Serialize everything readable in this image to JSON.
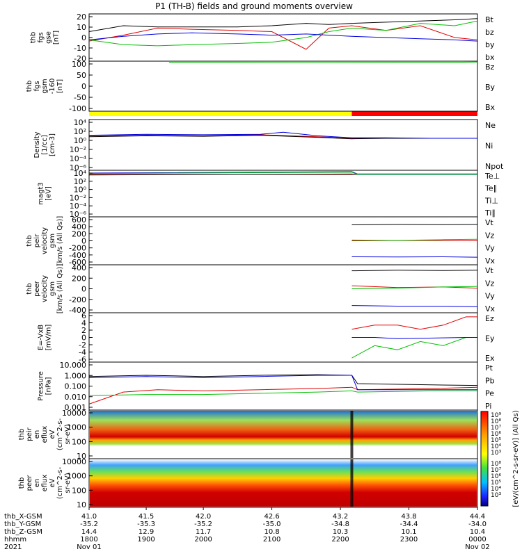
{
  "title": "P1 (TH-B) fields and ground moments overview",
  "chart_data": [
    {
      "type": "line",
      "ylabel": [
        "thb",
        "fgs",
        "gse",
        "[nT]"
      ],
      "yticks": [
        "20",
        "10",
        "0",
        "-10",
        "-20"
      ],
      "ylim": [
        -20,
        20
      ],
      "series": [
        {
          "name": "Bt",
          "color": "#000000",
          "x": [
            41.0,
            41.3,
            41.6,
            41.9,
            42.3,
            42.6,
            42.9,
            43.1,
            43.3,
            43.6,
            43.9,
            44.2,
            44.4
          ],
          "y": [
            5,
            10,
            9,
            9,
            9,
            10,
            12,
            11,
            12,
            13,
            14,
            15,
            16
          ]
        },
        {
          "name": "bz",
          "color": "#e00000",
          "x": [
            41.0,
            41.3,
            41.6,
            41.9,
            42.3,
            42.6,
            42.9,
            43.1,
            43.3,
            43.6,
            43.9,
            44.2,
            44.4
          ],
          "y": [
            -3,
            2,
            8,
            7,
            6,
            5,
            -10,
            8,
            10,
            6,
            10,
            0,
            -2
          ]
        },
        {
          "name": "by",
          "color": "#00c000",
          "x": [
            41.0,
            41.3,
            41.6,
            41.9,
            42.3,
            42.6,
            42.9,
            43.1,
            43.3,
            43.6,
            43.9,
            44.2,
            44.4
          ],
          "y": [
            -2,
            -6,
            -7,
            -6,
            -5,
            -4,
            0,
            5,
            8,
            6,
            12,
            10,
            14
          ]
        },
        {
          "name": "bx",
          "color": "#0000e0",
          "x": [
            41.0,
            41.3,
            41.6,
            41.9,
            42.3,
            42.6,
            42.9,
            43.1,
            43.3,
            43.6,
            43.9,
            44.2,
            44.4
          ],
          "y": [
            -2,
            1,
            3,
            4,
            3,
            2,
            3,
            2,
            1,
            0,
            -1,
            -2,
            -3
          ]
        }
      ]
    },
    {
      "type": "line",
      "ylabel": [
        "thb",
        "fgs",
        "gsm",
        "-160",
        "[nT]"
      ],
      "yticks": [
        "100",
        "50",
        "0",
        "-50",
        "-100"
      ],
      "ylim": [
        -120,
        100
      ],
      "series": [
        {
          "name": "Bz",
          "color": "#e00000",
          "x": [],
          "y": []
        },
        {
          "name": "By",
          "color": "#00c000",
          "x": [
            41.7,
            42.2,
            42.7,
            43.2,
            43.7,
            44.2,
            44.4
          ],
          "y": [
            95,
            95,
            94,
            94,
            95,
            95,
            96
          ]
        },
        {
          "name": "Bx",
          "color": "#0000e0",
          "x": [],
          "y": []
        }
      ]
    },
    {
      "type": "line",
      "ylabel": [
        "Density",
        "[1/cc]",
        "[cm-3]"
      ],
      "yticks": [
        "10⁴",
        "10²",
        "10⁰",
        "10⁻²",
        "10⁻⁴",
        "10⁻⁶"
      ],
      "ylim": [
        -6,
        4
      ],
      "yscale": "log",
      "series": [
        {
          "name": "Ne",
          "color": "#e00000",
          "x": [
            41.0,
            41.5,
            42.0,
            42.5,
            43.0,
            43.3,
            43.6,
            44.0,
            44.4
          ],
          "y": [
            0.8,
            0.9,
            0.8,
            1.0,
            0.6,
            0.3,
            0.3,
            0.3,
            0.3
          ]
        },
        {
          "name": "Ni",
          "color": "#000000",
          "x": [
            41.0,
            41.5,
            42.0,
            42.5,
            43.0,
            43.3,
            43.6,
            44.0,
            44.4
          ],
          "y": [
            0.6,
            0.8,
            0.7,
            0.9,
            0.5,
            0.2,
            0.3,
            0.3,
            0.3
          ]
        },
        {
          "name": "Npot",
          "color": "#0000e0",
          "x": [
            41.0,
            41.5,
            42.0,
            42.5,
            42.7,
            43.0,
            43.3,
            43.6,
            44.0,
            44.4
          ],
          "y": [
            0.9,
            1.1,
            1.0,
            1.1,
            1.5,
            0.8,
            0.4,
            0.4,
            0.3,
            0.3
          ]
        }
      ]
    },
    {
      "type": "line",
      "ylabel": [
        "magt3",
        "[eV]"
      ],
      "yticks": [
        "10⁴",
        "10²",
        "10⁰",
        "10⁻²",
        "10⁻⁴",
        "10⁻⁶"
      ],
      "ylim": [
        -6,
        4
      ],
      "yscale": "log",
      "series": [
        {
          "name": "Te⊥",
          "color": "#e00000",
          "x": [
            41.0,
            43.3,
            43.35,
            44.4
          ],
          "y": [
            3.1,
            3.1,
            3.2,
            3.2
          ]
        },
        {
          "name": "Te∥",
          "color": "#000000",
          "x": [
            41.0,
            43.3,
            43.35,
            44.4
          ],
          "y": [
            3.0,
            3.2,
            3.1,
            3.1
          ]
        },
        {
          "name": "Ti⊥",
          "color": "#0000e0",
          "x": [
            41.0,
            43.3,
            43.35,
            44.4
          ],
          "y": [
            3.4,
            3.7,
            3.2,
            3.2
          ]
        },
        {
          "name": "Ti∥",
          "color": "#00c000",
          "x": [
            41.0,
            43.3,
            43.35,
            44.4
          ],
          "y": [
            3.3,
            3.6,
            3.1,
            3.1
          ]
        }
      ]
    },
    {
      "type": "line",
      "ylabel": [
        "thb",
        "peir",
        "velocity",
        "gsm",
        "[km/s (All Qs)]"
      ],
      "yticks": [
        "600",
        "400",
        "200",
        "0",
        "-200",
        "-400",
        "-600"
      ],
      "ylim": [
        -600,
        600
      ],
      "series": [
        {
          "name": "Vt",
          "color": "#000000",
          "x": [
            43.3,
            43.7,
            44.1,
            44.4
          ],
          "y": [
            400,
            410,
            405,
            410
          ]
        },
        {
          "name": "Vz",
          "color": "#e00000",
          "x": [
            43.3,
            43.7,
            44.1,
            44.4
          ],
          "y": [
            0,
            10,
            5,
            0
          ]
        },
        {
          "name": "Vy",
          "color": "#00c000",
          "x": [
            43.3,
            43.7,
            44.1,
            44.4
          ],
          "y": [
            20,
            10,
            30,
            40
          ]
        },
        {
          "name": "Vx",
          "color": "#0000e0",
          "x": [
            43.3,
            43.7,
            44.1,
            44.4
          ],
          "y": [
            -400,
            -405,
            -400,
            -410
          ]
        }
      ]
    },
    {
      "type": "line",
      "ylabel": [
        "thb",
        "peer",
        "velocity",
        "gsm",
        "[km/s (All Qs)]"
      ],
      "yticks": [
        "400",
        "200",
        "0",
        "-200",
        "-400"
      ],
      "ylim": [
        -400,
        400
      ],
      "series": [
        {
          "name": "Vt",
          "color": "#000000",
          "x": [
            43.3,
            43.7,
            44.1,
            44.4
          ],
          "y": [
            300,
            310,
            305,
            310
          ]
        },
        {
          "name": "Vz",
          "color": "#e00000",
          "x": [
            43.3,
            43.7,
            44.1,
            44.4
          ],
          "y": [
            50,
            20,
            30,
            10
          ]
        },
        {
          "name": "Vy",
          "color": "#00c000",
          "x": [
            43.3,
            43.7,
            44.1,
            44.4
          ],
          "y": [
            0,
            10,
            30,
            40
          ]
        },
        {
          "name": "Vx",
          "color": "#0000e0",
          "x": [
            43.3,
            43.7,
            44.1,
            44.4
          ],
          "y": [
            -280,
            -290,
            -290,
            -300
          ]
        }
      ]
    },
    {
      "type": "line",
      "ylabel": [
        "E=-VxB",
        "[mV/m]"
      ],
      "yticks": [
        "6",
        "4",
        "2",
        "0",
        "-2",
        "-4",
        "-6"
      ],
      "ylim": [
        -6,
        6
      ],
      "series": [
        {
          "name": "Ez",
          "color": "#e00000",
          "x": [
            43.3,
            43.5,
            43.7,
            43.9,
            44.1,
            44.3,
            44.4
          ],
          "y": [
            2,
            3,
            3,
            2,
            3,
            5,
            5
          ]
        },
        {
          "name": "Ey",
          "color": "#00c000",
          "x": [
            43.3,
            43.5,
            43.7,
            43.9,
            44.1,
            44.3,
            44.4
          ],
          "y": [
            -5,
            -2,
            -3,
            -1,
            -2,
            0,
            0
          ]
        },
        {
          "name": "Ex",
          "color": "#0000e0",
          "x": [
            43.3,
            43.5,
            43.7,
            43.9,
            44.1,
            44.3,
            44.4
          ],
          "y": [
            0,
            0,
            -0.3,
            -0.2,
            -0.1,
            0,
            0
          ]
        }
      ]
    },
    {
      "type": "line",
      "ylabel": [
        "Pressure",
        "[nPa]"
      ],
      "yticks": [
        "10.000",
        "1.000",
        "0.100",
        "0.010",
        "0.001"
      ],
      "ylim": [
        -3,
        1
      ],
      "yscale": "log",
      "series": [
        {
          "name": "Pt",
          "color": "#000000",
          "x": [
            41.0,
            41.5,
            42.0,
            42.5,
            43.0,
            43.3,
            43.35,
            44.0,
            44.4
          ],
          "y": [
            -0.2,
            -0.1,
            -0.2,
            -0.1,
            -0.05,
            -0.1,
            -0.8,
            -0.9,
            -0.95
          ]
        },
        {
          "name": "Pb",
          "color": "#e00000",
          "x": [
            41.0,
            41.3,
            41.6,
            42.0,
            42.5,
            43.0,
            43.3,
            43.35,
            44.0,
            44.4
          ],
          "y": [
            -2.5,
            -1.5,
            -1.3,
            -1.4,
            -1.3,
            -1.2,
            -1.1,
            -1.3,
            -1.2,
            -1.1
          ]
        },
        {
          "name": "Pe",
          "color": "#00c000",
          "x": [
            41.0,
            41.5,
            42.0,
            42.5,
            43.0,
            43.3,
            43.35,
            44.0,
            44.4
          ],
          "y": [
            -1.8,
            -1.7,
            -1.7,
            -1.6,
            -1.5,
            -1.4,
            -1.5,
            -1.4,
            -1.4
          ]
        },
        {
          "name": "Pi",
          "color": "#0000e0",
          "x": [
            41.0,
            41.5,
            42.0,
            42.5,
            43.0,
            43.3,
            43.35,
            44.0,
            44.4
          ],
          "y": [
            -0.3,
            -0.2,
            -0.3,
            -0.2,
            -0.1,
            -0.1,
            -1.3,
            -1.3,
            -1.3
          ]
        }
      ]
    },
    {
      "type": "heatmap",
      "ylabel": [
        "thb",
        "peir",
        "en",
        "eflux",
        "eV",
        "(cm^2-s-",
        "sr-eV)"
      ],
      "yticks": [
        "10000",
        "1000",
        "100",
        "10"
      ],
      "yscale": "log"
    },
    {
      "type": "heatmap",
      "ylabel": [
        "thb",
        "peer",
        "en",
        "eflux",
        "eV",
        "(cm^2-s-",
        "sr-eV)"
      ],
      "yticks": [
        "10000",
        "1000",
        "100",
        "10"
      ],
      "yscale": "log"
    }
  ],
  "colorbar": {
    "label": "[eV/(cm^2-s-sr-eV)] (All Qs)",
    "ticks": [
      "10⁹",
      "10⁸",
      "10⁷",
      "10⁶",
      "10⁵",
      "10⁴",
      "10³"
    ],
    "ticks2": [
      "10⁸",
      "10⁷",
      "10⁶",
      "10⁵",
      "10⁴",
      "10³"
    ]
  },
  "mode_bar": {
    "colors": [
      "#ffff00",
      "#ff0000"
    ]
  },
  "x_axis": {
    "rows": [
      {
        "label": "thb_X-GSM",
        "values": [
          "41.0",
          "41.5",
          "42.0",
          "42.6",
          "43.2",
          "43.8",
          "44.4"
        ]
      },
      {
        "label": "thb_Y-GSM",
        "values": [
          "-35.2",
          "-35.3",
          "-35.2",
          "-35.0",
          "-34.8",
          "-34.4",
          "-34.0"
        ]
      },
      {
        "label": "thb_Z-GSM",
        "values": [
          "14.4",
          "12.9",
          "11.7",
          "10.8",
          "10.3",
          "10.1",
          "10.4"
        ]
      },
      {
        "label": "hhmm",
        "values": [
          "1800",
          "1900",
          "2000",
          "2100",
          "2200",
          "2300",
          "0000"
        ]
      }
    ],
    "year": "2021",
    "start_date": "Nov 01",
    "end_date": "Nov 02"
  }
}
